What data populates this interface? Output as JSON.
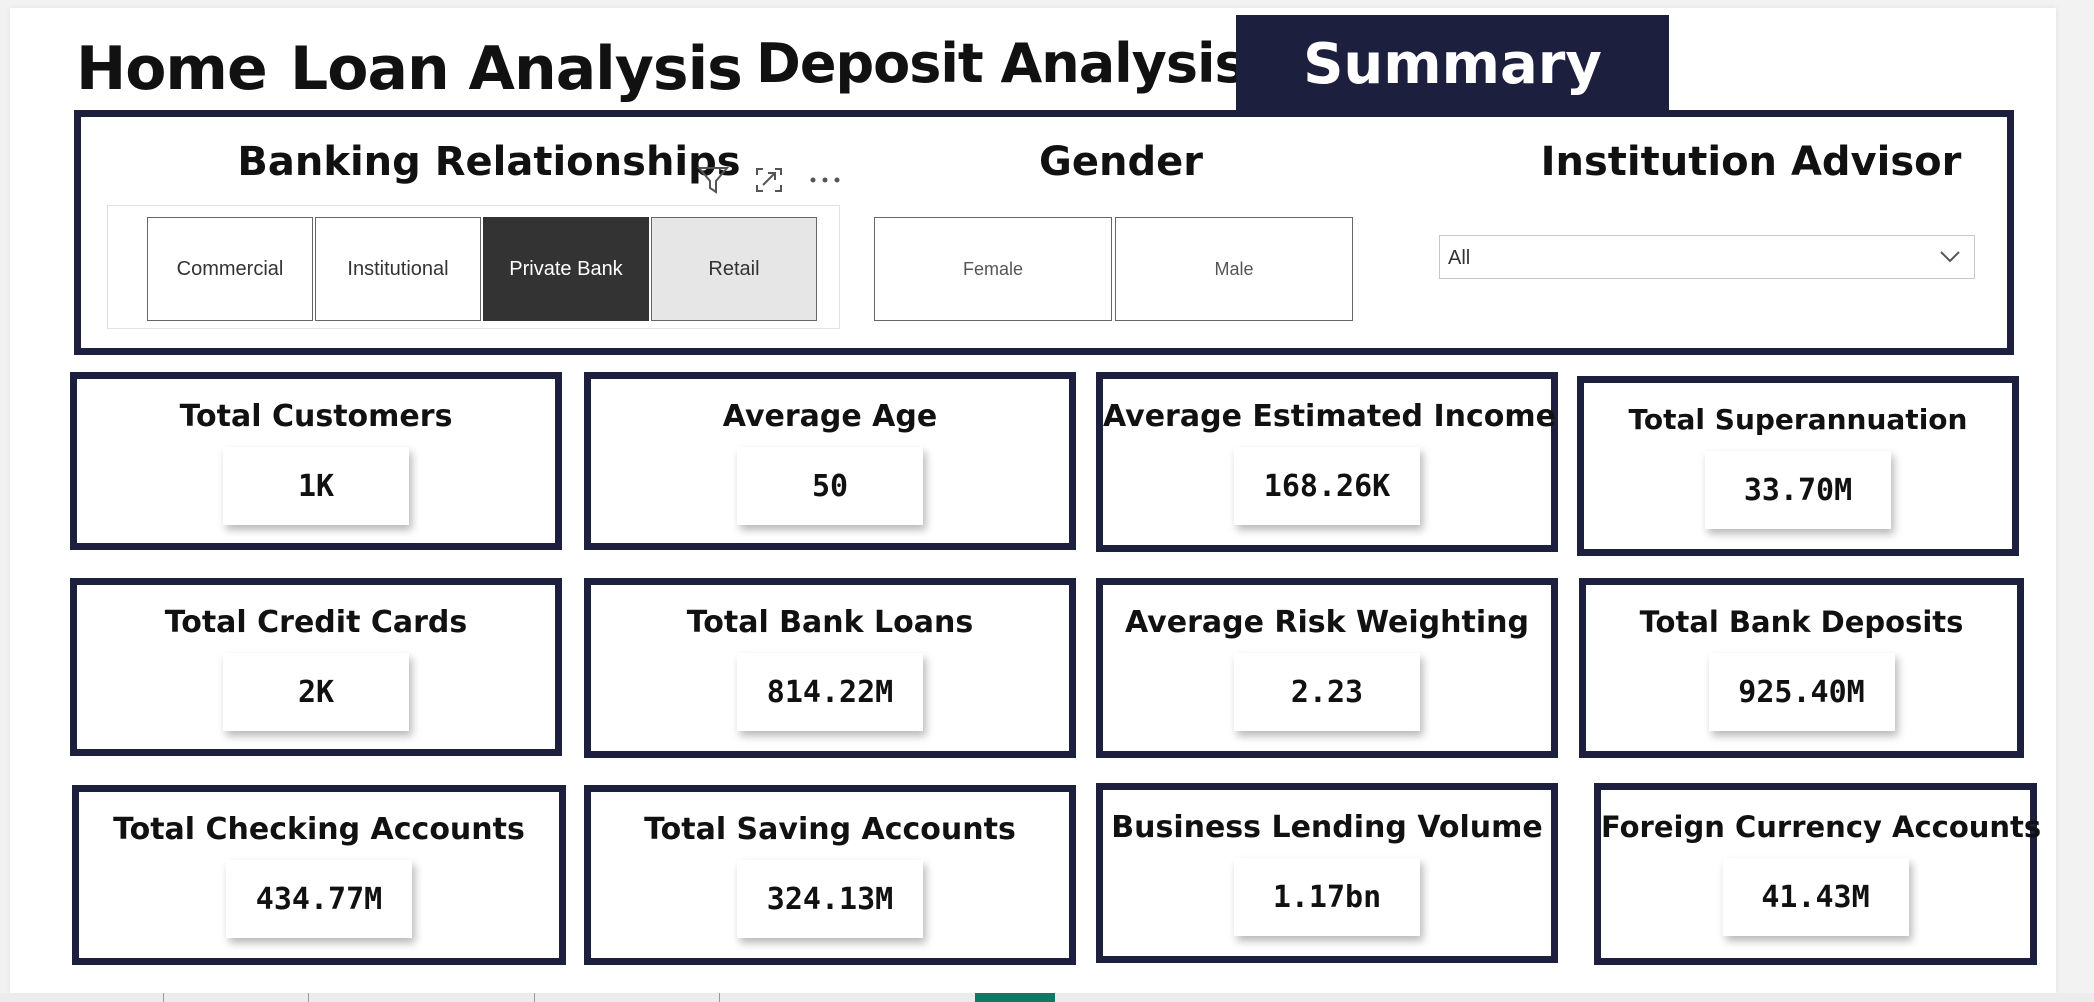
{
  "nav": {
    "home": "Home",
    "loan": "Loan Analysis",
    "deposit": "Deposit Analysis",
    "summary": "Summary"
  },
  "filters": {
    "banking": {
      "title": "Banking Relationships",
      "options": [
        "Commercial",
        "Institutional",
        "Private Bank",
        "Retail"
      ],
      "selected": "Private Bank"
    },
    "gender": {
      "title": "Gender",
      "options": [
        "Female",
        "Male"
      ]
    },
    "advisor": {
      "title": "Institution Advisor",
      "value": "All"
    }
  },
  "icons": {
    "filter": "filter-icon",
    "focus": "focus-mode-icon",
    "more": "more-options-icon",
    "dropdown": "chevron-down-icon"
  },
  "colors": {
    "accent": "#1c1f3e",
    "selected_chip": "#333333",
    "active_page": "#117865"
  },
  "cards": [
    {
      "title": "Total Customers",
      "value": "1K"
    },
    {
      "title": "Average Age",
      "value": "50"
    },
    {
      "title": "Average Estimated Income",
      "value": "168.26K"
    },
    {
      "title": "Total Superannuation",
      "value": "33.70M"
    },
    {
      "title": "Total Credit Cards",
      "value": "2K"
    },
    {
      "title": "Total Bank Loans",
      "value": "814.22M"
    },
    {
      "title": "Average Risk Weighting",
      "value": "2.23"
    },
    {
      "title": "Total Bank Deposits",
      "value": "925.40M"
    },
    {
      "title": "Total Checking Accounts",
      "value": "434.77M"
    },
    {
      "title": "Total Saving Accounts",
      "value": "324.13M"
    },
    {
      "title": "Business Lending Volume",
      "value": "1.17bn"
    },
    {
      "title": "Foreign Currency Accounts",
      "value": "41.43M"
    }
  ]
}
